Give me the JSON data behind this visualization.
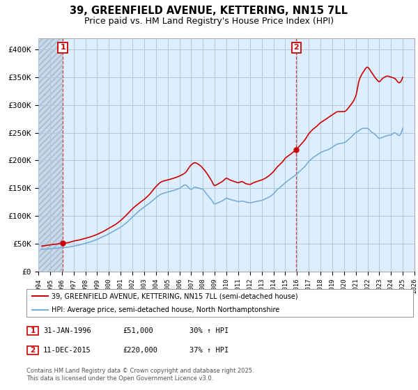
{
  "title": "39, GREENFIELD AVENUE, KETTERING, NN15 7LL",
  "subtitle": "Price paid vs. HM Land Registry's House Price Index (HPI)",
  "legend_line1": "39, GREENFIELD AVENUE, KETTERING, NN15 7LL (semi-detached house)",
  "legend_line2": "HPI: Average price, semi-detached house, North Northamptonshire",
  "footnote": "Contains HM Land Registry data © Crown copyright and database right 2025.\nThis data is licensed under the Open Government Licence v3.0.",
  "annotation1_date": "31-JAN-1996",
  "annotation1_price": "£51,000",
  "annotation1_hpi": "30% ↑ HPI",
  "annotation2_date": "11-DEC-2015",
  "annotation2_price": "£220,000",
  "annotation2_hpi": "37% ↑ HPI",
  "point1_x": 1996.08,
  "point1_y": 51000,
  "point2_x": 2015.95,
  "point2_y": 220000,
  "vline1_x": 1996.08,
  "vline2_x": 2015.95,
  "price_line_color": "#cc0000",
  "hpi_line_color": "#7aadd4",
  "plot_bg_color": "#ddeeff",
  "hatch_color": "#c8d8e8",
  "ylim_min": 0,
  "ylim_max": 420000,
  "yticks": [
    0,
    50000,
    100000,
    150000,
    200000,
    250000,
    300000,
    350000,
    400000
  ],
  "ytick_labels": [
    "£0",
    "£50K",
    "£100K",
    "£150K",
    "£200K",
    "£250K",
    "£300K",
    "£350K",
    "£400K"
  ],
  "xmin": 1994,
  "xmax": 2026,
  "grid_color": "#b0c8e0",
  "title_fontsize": 10.5,
  "subtitle_fontsize": 9,
  "axis_fontsize": 8
}
